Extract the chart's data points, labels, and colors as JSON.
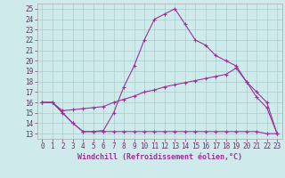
{
  "xlabel": "Windchill (Refroidissement éolien,°C)",
  "x_ticks": [
    0,
    1,
    2,
    3,
    4,
    5,
    6,
    7,
    8,
    9,
    10,
    11,
    12,
    13,
    14,
    15,
    16,
    17,
    18,
    19,
    20,
    21,
    22,
    23
  ],
  "y_ticks": [
    13,
    14,
    15,
    16,
    17,
    18,
    19,
    20,
    21,
    22,
    23,
    24,
    25
  ],
  "ylim": [
    12.5,
    25.5
  ],
  "xlim": [
    -0.5,
    23.5
  ],
  "bg_color": "#ceeaea",
  "line_color": "#993399",
  "grid_color": "#aacccc",
  "lines": [
    {
      "x": [
        0,
        1,
        2,
        3,
        4,
        5,
        6,
        7,
        8,
        9,
        10,
        11,
        12,
        13,
        14,
        15,
        16,
        17,
        18,
        19,
        20,
        21,
        22,
        23
      ],
      "y": [
        16,
        16,
        15,
        14,
        13.2,
        13.2,
        13.3,
        15,
        17.5,
        19.5,
        22,
        24,
        24.5,
        25,
        23.5,
        22,
        21.5,
        20.5,
        20,
        19.5,
        18,
        16.5,
        15.5,
        13
      ]
    },
    {
      "x": [
        0,
        1,
        2,
        3,
        4,
        5,
        6,
        7,
        8,
        9,
        10,
        11,
        12,
        13,
        14,
        15,
        16,
        17,
        18,
        19,
        20,
        21,
        22,
        23
      ],
      "y": [
        16,
        16,
        15.2,
        15.3,
        15.4,
        15.5,
        15.6,
        16.0,
        16.3,
        16.6,
        17.0,
        17.2,
        17.5,
        17.7,
        17.9,
        18.1,
        18.3,
        18.5,
        18.7,
        19.3,
        18.0,
        17.0,
        16.0,
        13
      ]
    },
    {
      "x": [
        0,
        1,
        2,
        3,
        4,
        5,
        6,
        7,
        8,
        9,
        10,
        11,
        12,
        13,
        14,
        15,
        16,
        17,
        18,
        19,
        20,
        21,
        22,
        23
      ],
      "y": [
        16,
        16,
        15,
        14,
        13.2,
        13.2,
        13.2,
        13.2,
        13.2,
        13.2,
        13.2,
        13.2,
        13.2,
        13.2,
        13.2,
        13.2,
        13.2,
        13.2,
        13.2,
        13.2,
        13.2,
        13.2,
        13.0,
        13.0
      ]
    }
  ],
  "xlabel_color": "#993399",
  "xlabel_fontsize": 6.0,
  "tick_fontsize": 5.5,
  "tick_color": "#663366",
  "figsize": [
    3.2,
    2.0
  ],
  "dpi": 100
}
